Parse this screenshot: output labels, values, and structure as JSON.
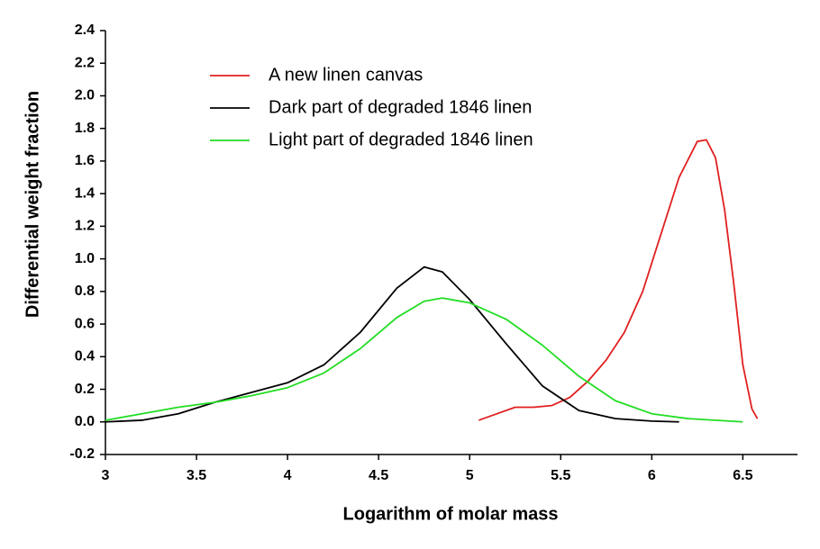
{
  "chart_data": {
    "type": "line",
    "xlabel": "Logarithm of molar mass",
    "ylabel": "Differential weight fraction",
    "xlim": [
      3,
      6.8
    ],
    "ylim": [
      -0.2,
      2.4
    ],
    "xticks": [
      3,
      3.5,
      4,
      4.5,
      5,
      5.5,
      6,
      6.5
    ],
    "yticks": [
      -0.2,
      {
        "value": 0,
        "label": "0.0"
      },
      0.2,
      0.4,
      0.6,
      0.8,
      {
        "value": 1,
        "label": "1.0"
      },
      1.2,
      1.4,
      1.6,
      1.8,
      {
        "value": 2,
        "label": "2.0"
      },
      2.2,
      2.4
    ],
    "legend": "upper left",
    "series": [
      {
        "name": "A new linen canvas",
        "color": "#e02020",
        "x": [
          5.05,
          5.15,
          5.25,
          5.35,
          5.45,
          5.55,
          5.65,
          5.75,
          5.85,
          5.95,
          6.05,
          6.15,
          6.25,
          6.3,
          6.35,
          6.4,
          6.45,
          6.5,
          6.55,
          6.58
        ],
        "values": [
          0.01,
          0.05,
          0.09,
          0.09,
          0.1,
          0.15,
          0.25,
          0.38,
          0.55,
          0.8,
          1.15,
          1.5,
          1.72,
          1.73,
          1.62,
          1.3,
          0.85,
          0.35,
          0.08,
          0.02
        ]
      },
      {
        "name": "Dark part of degraded 1846 linen",
        "color": "#000000",
        "x": [
          3.0,
          3.2,
          3.4,
          3.6,
          3.8,
          4.0,
          4.2,
          4.4,
          4.6,
          4.75,
          4.85,
          5.0,
          5.2,
          5.4,
          5.6,
          5.8,
          6.0,
          6.15
        ],
        "values": [
          0,
          0.01,
          0.05,
          0.12,
          0.18,
          0.24,
          0.35,
          0.55,
          0.82,
          0.95,
          0.92,
          0.75,
          0.48,
          0.22,
          0.07,
          0.02,
          0.005,
          0
        ]
      },
      {
        "name": "Light part of degraded 1846 linen",
        "color": "#22dd22",
        "x": [
          3.0,
          3.2,
          3.4,
          3.6,
          3.8,
          4.0,
          4.2,
          4.4,
          4.6,
          4.75,
          4.85,
          5.0,
          5.2,
          5.4,
          5.6,
          5.8,
          6.0,
          6.2,
          6.5
        ],
        "values": [
          0.01,
          0.05,
          0.09,
          0.12,
          0.16,
          0.21,
          0.3,
          0.45,
          0.64,
          0.74,
          0.76,
          0.73,
          0.63,
          0.47,
          0.28,
          0.13,
          0.05,
          0.02,
          0
        ]
      }
    ]
  }
}
